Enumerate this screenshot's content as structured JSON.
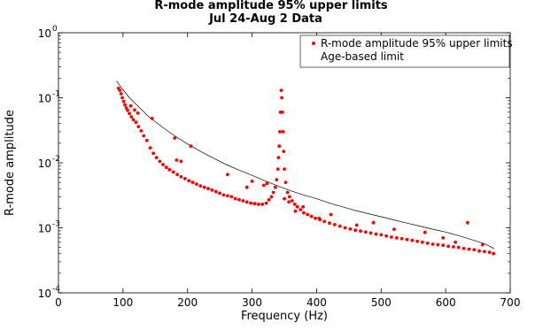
{
  "chart_data": {
    "type": "scatter",
    "title": "R-mode amplitude 95% upper limits",
    "subtitle": "Jul 24-Aug 2 Data",
    "xlabel": "Frequency (Hz)",
    "ylabel": "R-mode amplitude",
    "xlim": [
      0,
      700
    ],
    "ylim": [
      0.0001,
      1
    ],
    "yscale": "log",
    "grid": false,
    "legend_position": "top-right",
    "x_ticks": [
      "0",
      "100",
      "200",
      "300",
      "400",
      "500",
      "600",
      "700"
    ],
    "x_tick_values": [
      0,
      100,
      200,
      300,
      400,
      500,
      600,
      700
    ],
    "y_ticks": [
      {
        "base": "10",
        "exp": "-4",
        "value": 0.0001
      },
      {
        "base": "10",
        "exp": "-3",
        "value": 0.001
      },
      {
        "base": "10",
        "exp": "-2",
        "value": 0.01
      },
      {
        "base": "10",
        "exp": "-1",
        "value": 0.1
      },
      {
        "base": "10",
        "exp": "0",
        "value": 1
      }
    ],
    "series": [
      {
        "name": "R-mode amplitude 95% upper limits",
        "style": "points",
        "color": "#ff0000",
        "x": [
          93,
          95,
          97,
          99,
          101,
          103,
          105,
          107,
          110,
          113,
          116,
          120,
          124,
          128,
          132,
          137,
          142,
          147,
          152,
          157,
          162,
          167,
          172,
          178,
          184,
          190,
          196,
          202,
          208,
          214,
          220,
          226,
          232,
          238,
          244,
          250,
          256,
          262,
          268,
          274,
          280,
          286,
          292,
          298,
          304,
          310,
          316,
          322,
          326,
          330,
          333,
          336,
          338,
          340,
          341,
          342,
          343,
          344,
          345,
          346,
          347,
          348,
          349,
          350,
          352,
          355,
          358,
          362,
          366,
          370,
          375,
          380,
          386,
          392,
          398,
          405,
          412,
          420,
          428,
          436,
          444,
          452,
          460,
          468,
          476,
          484,
          492,
          500,
          508,
          516,
          524,
          532,
          540,
          548,
          556,
          564,
          572,
          580,
          588,
          596,
          604,
          612,
          620,
          628,
          636,
          644,
          652,
          660,
          668,
          674,
          112,
          118,
          123,
          145,
          180,
          183,
          190,
          205,
          262,
          292,
          300,
          318,
          323,
          350,
          357,
          367,
          379,
          404,
          422,
          462,
          488,
          520,
          568,
          596,
          615,
          634,
          657
        ],
        "y": [
          0.14,
          0.13,
          0.115,
          0.1,
          0.088,
          0.078,
          0.07,
          0.064,
          0.057,
          0.051,
          0.046,
          0.042,
          0.036,
          0.031,
          0.026,
          0.022,
          0.017,
          0.014,
          0.012,
          0.0105,
          0.0094,
          0.0085,
          0.0078,
          0.0072,
          0.0066,
          0.0061,
          0.0057,
          0.0053,
          0.005,
          0.0047,
          0.0044,
          0.0042,
          0.004,
          0.0038,
          0.0036,
          0.0034,
          0.0032,
          0.0031,
          0.003,
          0.0028,
          0.0027,
          0.0026,
          0.0025,
          0.0024,
          0.00235,
          0.0023,
          0.0023,
          0.0024,
          0.0027,
          0.003,
          0.0035,
          0.0042,
          0.0055,
          0.008,
          0.012,
          0.018,
          0.03,
          0.06,
          0.13,
          0.1,
          0.06,
          0.03,
          0.015,
          0.008,
          0.005,
          0.0035,
          0.003,
          0.0026,
          0.0023,
          0.0021,
          0.0019,
          0.0017,
          0.0016,
          0.0015,
          0.0014,
          0.00133,
          0.00125,
          0.00118,
          0.00112,
          0.00106,
          0.001,
          0.00096,
          0.00092,
          0.00089,
          0.00086,
          0.00083,
          0.0008,
          0.00078,
          0.00075,
          0.00072,
          0.0007,
          0.00068,
          0.00066,
          0.00064,
          0.00062,
          0.0006,
          0.00058,
          0.00056,
          0.00055,
          0.00054,
          0.00052,
          0.00051,
          0.0005,
          0.00048,
          0.00047,
          0.00046,
          0.00044,
          0.00043,
          0.00042,
          0.0004,
          0.075,
          0.065,
          0.058,
          0.048,
          0.024,
          0.011,
          0.0105,
          0.018,
          0.0066,
          0.0042,
          0.0052,
          0.0045,
          0.0048,
          0.0028,
          0.0025,
          0.0018,
          0.0021,
          0.0014,
          0.0016,
          0.0011,
          0.0012,
          0.00095,
          0.00085,
          0.0007,
          0.0006,
          0.0012,
          0.00055
        ]
      },
      {
        "name": "Age-based limit",
        "style": "line",
        "color": "#000000",
        "x": [
          90,
          100,
          110,
          120,
          140,
          160,
          180,
          200,
          220,
          240,
          260,
          280,
          300,
          320,
          340,
          360,
          380,
          400,
          420,
          440,
          460,
          480,
          500,
          520,
          540,
          560,
          580,
          600,
          620,
          640,
          660,
          675
        ],
        "y": [
          0.18,
          0.133,
          0.1,
          0.08,
          0.051,
          0.036,
          0.026,
          0.0195,
          0.015,
          0.0118,
          0.0094,
          0.0077,
          0.0064,
          0.0053,
          0.0044,
          0.0037,
          0.0032,
          0.0028,
          0.0024,
          0.0021,
          0.00185,
          0.00165,
          0.00148,
          0.00132,
          0.00118,
          0.00106,
          0.00095,
          0.00086,
          0.00076,
          0.00066,
          0.00057,
          0.00048
        ]
      }
    ]
  }
}
